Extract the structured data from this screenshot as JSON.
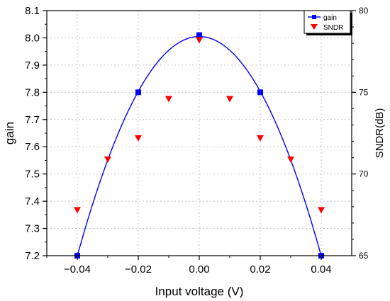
{
  "chart_data": {
    "type": "scatter",
    "x_axis": {
      "label": "Input voltage (V)",
      "lim": [
        -0.05,
        0.05
      ],
      "ticks": [
        -0.04,
        -0.02,
        0.0,
        0.02,
        0.04
      ],
      "tick_labels": [
        "−0.04",
        "−0.02",
        "0.00",
        "0.02",
        "0.04"
      ]
    },
    "y_axis_left": {
      "label": "gain",
      "lim": [
        7.2,
        8.1
      ],
      "ticks": [
        7.2,
        7.3,
        7.4,
        7.5,
        7.6,
        7.7,
        7.8,
        7.9,
        8.0,
        8.1
      ],
      "tick_labels": [
        "7.2",
        "7.3",
        "7.4",
        "7.5",
        "7.6",
        "7.7",
        "7.8",
        "7.9",
        "8.0",
        "8.1"
      ]
    },
    "y_axis_right": {
      "label": "SNDR(dB)",
      "lim": [
        65,
        80
      ],
      "ticks": [
        65,
        70,
        75,
        80
      ],
      "tick_labels": [
        "65",
        "70",
        "75",
        "80"
      ]
    },
    "grid": true,
    "legend_position": "top-right",
    "series": [
      {
        "name": "gain",
        "axis": "left",
        "marker": "square",
        "line": "fitted-curve",
        "color": "#0000ff",
        "x": [
          -0.04,
          -0.02,
          0.0,
          0.02,
          0.04
        ],
        "y": [
          7.2,
          7.8,
          8.01,
          7.8,
          7.2
        ]
      },
      {
        "name": "SNDR",
        "axis": "right",
        "marker": "triangle-down",
        "line": "none",
        "color": "#ff0000",
        "x": [
          -0.04,
          -0.03,
          -0.02,
          -0.01,
          0.0,
          0.01,
          0.02,
          0.03,
          0.04
        ],
        "y": [
          67.8,
          70.9,
          72.2,
          74.6,
          78.2,
          74.6,
          72.2,
          70.9,
          67.8
        ]
      }
    ]
  }
}
